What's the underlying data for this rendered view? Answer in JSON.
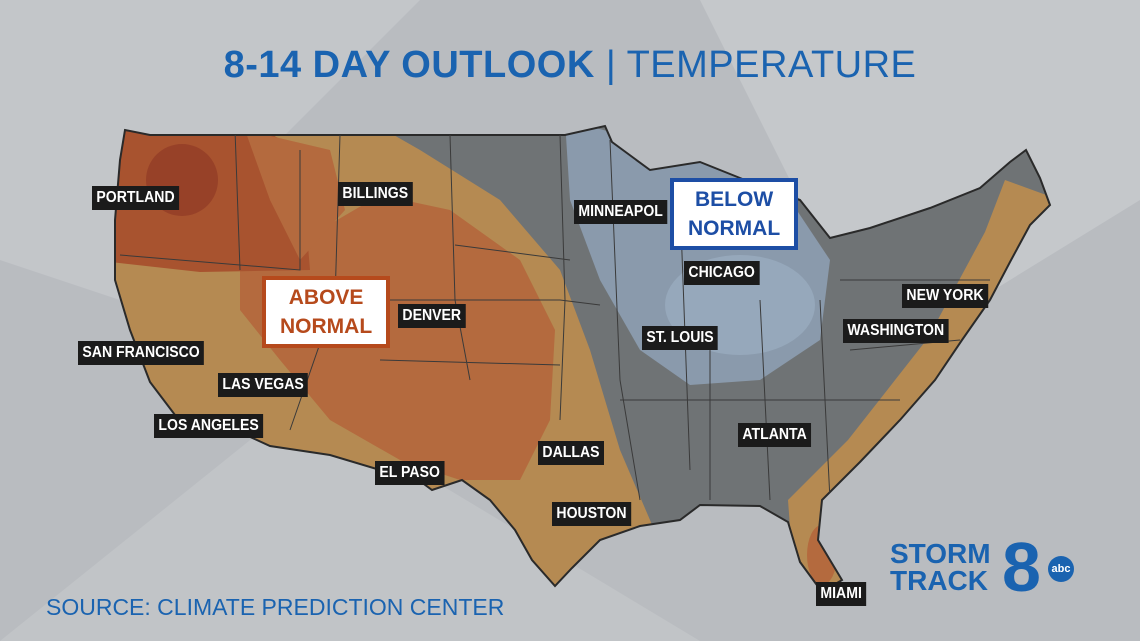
{
  "title": {
    "main": "8-14 DAY OUTLOOK",
    "separator": "|",
    "sub": "TEMPERATURE"
  },
  "cities": [
    "PORTLAND",
    "BILLINGS",
    "MINNEAPOL",
    "CHICAGO",
    "NEW YORK",
    "WASHINGTON",
    "ST. LOUIS",
    "DENVER",
    "SAN FRANCISCO",
    "LAS VEGAS",
    "LOS ANGELES",
    "EL PASO",
    "DALLAS",
    "HOUSTON",
    "ATLANTA",
    "MIAMI"
  ],
  "regions": [
    {
      "lines": [
        "ABOVE",
        "NORMAL"
      ]
    },
    {
      "lines": [
        "BELOW",
        "NORMAL"
      ]
    }
  ],
  "source": "SOURCE: CLIMATE PREDICTION CENTER",
  "logo": {
    "line1": "STORM",
    "line2": "TRACK",
    "number": "8",
    "network": "abc"
  }
}
